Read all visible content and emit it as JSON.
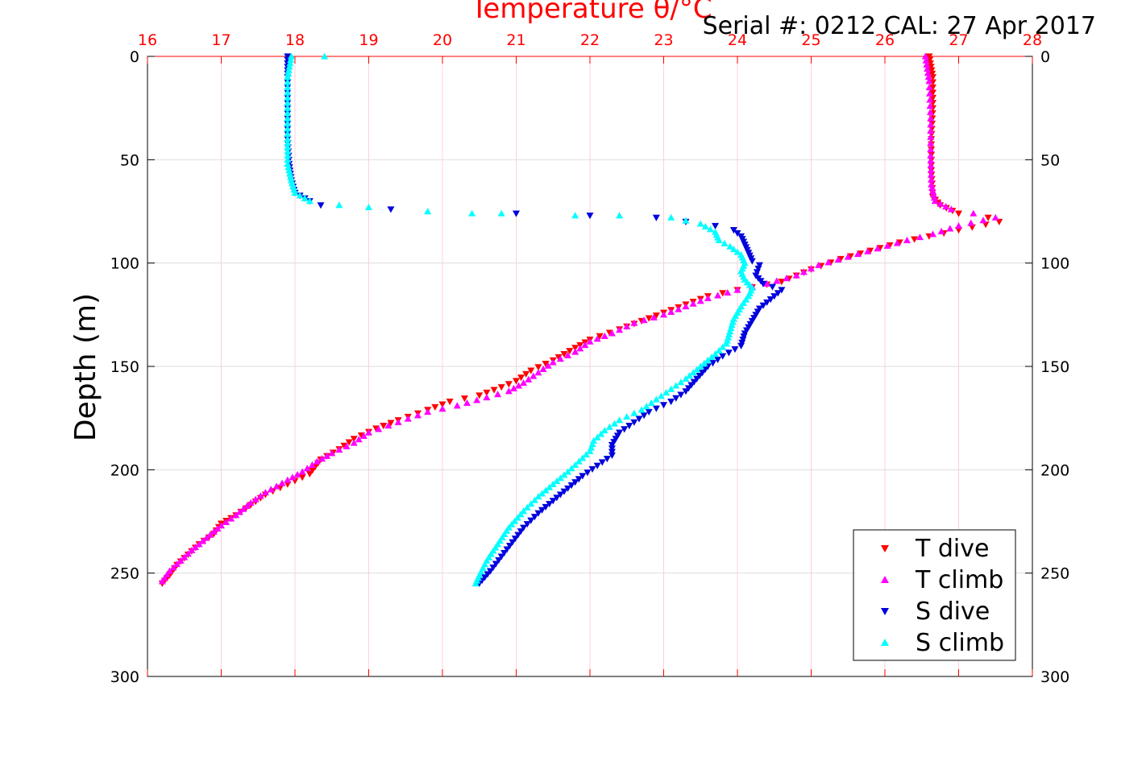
{
  "chart_data": {
    "type": "scatter",
    "title": "Temperature θ/°C",
    "annotation": "Serial #: 0212  CAL: 27 Apr 2017",
    "ylabel": "Depth (m)",
    "xlim": [
      16,
      28
    ],
    "ylim": [
      0,
      300
    ],
    "y_reversed": true,
    "x_ticks": [
      "16",
      "17",
      "18",
      "19",
      "20",
      "21",
      "22",
      "23",
      "24",
      "25",
      "26",
      "27",
      "28"
    ],
    "y_ticks": [
      "0",
      "50",
      "100",
      "150",
      "200",
      "250",
      "300"
    ],
    "grid": true,
    "legend_position": "bottom-right",
    "series": [
      {
        "name": "T dive",
        "color": "#ff0000",
        "marker": "triangle-down",
        "points": [
          [
            26.6,
            0
          ],
          [
            26.65,
            10
          ],
          [
            26.65,
            25
          ],
          [
            26.63,
            40
          ],
          [
            26.63,
            55
          ],
          [
            26.65,
            68
          ],
          [
            26.75,
            72
          ],
          [
            27.0,
            76
          ],
          [
            27.4,
            78
          ],
          [
            27.55,
            80
          ],
          [
            27.0,
            84
          ],
          [
            26.6,
            87
          ],
          [
            26.2,
            90
          ],
          [
            25.8,
            94
          ],
          [
            25.4,
            98
          ],
          [
            25.0,
            103
          ],
          [
            24.6,
            109
          ],
          [
            24.0,
            113
          ],
          [
            23.6,
            116
          ],
          [
            23.3,
            120
          ],
          [
            23.0,
            124
          ],
          [
            22.7,
            128
          ],
          [
            22.4,
            132
          ],
          [
            22.0,
            137
          ],
          [
            21.8,
            141
          ],
          [
            21.5,
            147
          ],
          [
            21.2,
            152
          ],
          [
            21.0,
            157
          ],
          [
            20.8,
            160
          ],
          [
            20.5,
            164
          ],
          [
            20.1,
            167
          ],
          [
            19.8,
            171
          ],
          [
            19.4,
            176
          ],
          [
            19.1,
            180
          ],
          [
            18.8,
            185
          ],
          [
            18.6,
            190
          ],
          [
            18.35,
            195
          ],
          [
            18.2,
            202
          ],
          [
            17.9,
            207
          ],
          [
            17.6,
            212
          ],
          [
            17.4,
            217
          ],
          [
            17.2,
            222
          ],
          [
            17.0,
            226
          ],
          [
            16.9,
            231
          ],
          [
            16.7,
            236
          ],
          [
            16.55,
            241
          ],
          [
            16.4,
            246
          ],
          [
            16.3,
            251
          ],
          [
            16.2,
            255
          ]
        ]
      },
      {
        "name": "T climb",
        "color": "#ff00ff",
        "marker": "triangle-up",
        "points": [
          [
            26.55,
            0
          ],
          [
            26.6,
            12
          ],
          [
            26.62,
            30
          ],
          [
            26.62,
            48
          ],
          [
            26.63,
            62
          ],
          [
            26.68,
            70
          ],
          [
            26.9,
            74
          ],
          [
            27.2,
            76
          ],
          [
            27.5,
            78
          ],
          [
            27.0,
            82
          ],
          [
            26.65,
            86
          ],
          [
            26.3,
            89
          ],
          [
            25.9,
            93
          ],
          [
            25.5,
            97
          ],
          [
            25.1,
            101
          ],
          [
            24.8,
            106
          ],
          [
            24.4,
            110
          ],
          [
            24.0,
            113
          ],
          [
            23.6,
            117
          ],
          [
            23.3,
            121
          ],
          [
            23.0,
            125
          ],
          [
            22.6,
            129
          ],
          [
            22.3,
            134
          ],
          [
            22.0,
            138
          ],
          [
            21.8,
            143
          ],
          [
            21.5,
            148
          ],
          [
            21.3,
            153
          ],
          [
            21.1,
            158
          ],
          [
            20.9,
            162
          ],
          [
            20.6,
            165
          ],
          [
            20.2,
            169
          ],
          [
            19.8,
            172
          ],
          [
            19.4,
            177
          ],
          [
            19.0,
            182
          ],
          [
            18.8,
            187
          ],
          [
            18.5,
            192
          ],
          [
            18.3,
            196
          ],
          [
            18.1,
            201
          ],
          [
            17.9,
            205
          ],
          [
            17.6,
            211
          ],
          [
            17.4,
            216
          ],
          [
            17.2,
            222
          ],
          [
            17.0,
            227
          ],
          [
            16.8,
            233
          ],
          [
            16.6,
            239
          ],
          [
            16.45,
            244
          ],
          [
            16.3,
            249
          ],
          [
            16.2,
            254
          ]
        ]
      },
      {
        "name": "S dive",
        "color": "#0000dd",
        "marker": "triangle-down",
        "points": [
          [
            17.9,
            0
          ],
          [
            17.9,
            10
          ],
          [
            17.9,
            25
          ],
          [
            17.9,
            40
          ],
          [
            17.92,
            52
          ],
          [
            17.95,
            60
          ],
          [
            18.0,
            66
          ],
          [
            18.2,
            70
          ],
          [
            18.35,
            72
          ],
          [
            19.3,
            74
          ],
          [
            21.0,
            76
          ],
          [
            22.0,
            77
          ],
          [
            22.9,
            78
          ],
          [
            23.3,
            80
          ],
          [
            23.7,
            82
          ],
          [
            23.95,
            84
          ],
          [
            24.05,
            87
          ],
          [
            24.1,
            91
          ],
          [
            24.15,
            95
          ],
          [
            24.2,
            99
          ],
          [
            24.3,
            101
          ],
          [
            24.25,
            106
          ],
          [
            24.35,
            110
          ],
          [
            24.6,
            113
          ],
          [
            24.5,
            116
          ],
          [
            24.3,
            122
          ],
          [
            24.2,
            128
          ],
          [
            24.1,
            134
          ],
          [
            24.05,
            140
          ],
          [
            23.8,
            145
          ],
          [
            23.6,
            150
          ],
          [
            23.45,
            156
          ],
          [
            23.3,
            162
          ],
          [
            23.1,
            167
          ],
          [
            22.8,
            172
          ],
          [
            22.6,
            177
          ],
          [
            22.4,
            182
          ],
          [
            22.3,
            188
          ],
          [
            22.3,
            193
          ],
          [
            22.1,
            198
          ],
          [
            21.9,
            203
          ],
          [
            21.7,
            209
          ],
          [
            21.5,
            215
          ],
          [
            21.3,
            221
          ],
          [
            21.1,
            228
          ],
          [
            20.95,
            235
          ],
          [
            20.8,
            242
          ],
          [
            20.65,
            249
          ],
          [
            20.5,
            255
          ]
        ]
      },
      {
        "name": "S climb",
        "color": "#00ffff",
        "marker": "triangle-up",
        "points": [
          [
            18.4,
            0
          ],
          [
            17.95,
            0
          ],
          [
            17.9,
            10
          ],
          [
            17.9,
            25
          ],
          [
            17.9,
            40
          ],
          [
            17.9,
            52
          ],
          [
            17.95,
            60
          ],
          [
            18.0,
            66
          ],
          [
            18.2,
            70
          ],
          [
            18.6,
            72
          ],
          [
            19.0,
            73
          ],
          [
            19.8,
            75
          ],
          [
            20.4,
            76
          ],
          [
            20.8,
            76
          ],
          [
            21.8,
            77
          ],
          [
            22.4,
            77
          ],
          [
            23.1,
            78
          ],
          [
            23.5,
            81
          ],
          [
            23.7,
            85
          ],
          [
            23.75,
            89
          ],
          [
            23.9,
            92
          ],
          [
            24.05,
            96
          ],
          [
            24.1,
            100
          ],
          [
            24.05,
            104
          ],
          [
            24.1,
            108
          ],
          [
            24.2,
            112
          ],
          [
            24.15,
            116
          ],
          [
            24.05,
            121
          ],
          [
            23.95,
            127
          ],
          [
            23.9,
            133
          ],
          [
            23.85,
            139
          ],
          [
            23.7,
            144
          ],
          [
            23.5,
            150
          ],
          [
            23.3,
            156
          ],
          [
            23.1,
            161
          ],
          [
            22.9,
            166
          ],
          [
            22.7,
            171
          ],
          [
            22.4,
            176
          ],
          [
            22.2,
            181
          ],
          [
            22.05,
            186
          ],
          [
            22.0,
            191
          ],
          [
            21.85,
            196
          ],
          [
            21.7,
            201
          ],
          [
            21.5,
            207
          ],
          [
            21.3,
            213
          ],
          [
            21.1,
            220
          ],
          [
            20.9,
            228
          ],
          [
            20.75,
            236
          ],
          [
            20.6,
            244
          ],
          [
            20.5,
            251
          ],
          [
            20.45,
            255
          ]
        ]
      }
    ]
  }
}
